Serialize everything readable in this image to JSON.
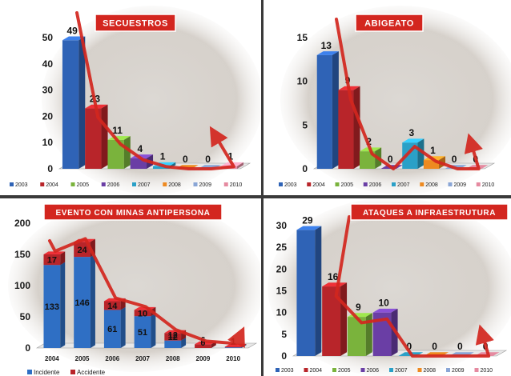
{
  "colors": {
    "title_bg": "#d3261f",
    "trend": "#d3271f",
    "divider": "#3a3a3a",
    "year_colors": {
      "2003": "#2f63b6",
      "2004": "#b8252a",
      "2005": "#7ab33c",
      "2006": "#6a3ea5",
      "2007": "#2aa0c7",
      "2008": "#ee8a21",
      "2009": "#8aa6d6",
      "2010": "#e58aa0"
    },
    "incidente": "#2f6fc4",
    "accidente": "#b8252a"
  },
  "chart_data": [
    {
      "type": "bar",
      "title": "SECUESTROS",
      "categories": [
        "2003",
        "2004",
        "2005",
        "2006",
        "2007",
        "2008",
        "2009",
        "2010"
      ],
      "values": [
        49,
        23,
        11,
        4,
        1,
        0,
        0,
        1
      ],
      "ylim": [
        0,
        50
      ],
      "yticks": [
        0,
        10,
        20,
        30,
        40,
        50
      ],
      "legend": [
        "2003",
        "2004",
        "2005",
        "2006",
        "2007",
        "2008",
        "2009",
        "2010"
      ],
      "legend_position": "bottom",
      "grid": false
    },
    {
      "type": "bar",
      "title": "ABIGEATO",
      "categories": [
        "2003",
        "2004",
        "2005",
        "2006",
        "2007",
        "2008",
        "2009",
        "2010"
      ],
      "values": [
        13,
        9,
        2,
        0,
        3,
        1,
        0,
        0
      ],
      "ylim": [
        0,
        15
      ],
      "yticks": [
        0,
        5,
        10,
        15
      ],
      "legend": [
        "2003",
        "2004",
        "2005",
        "2006",
        "2007",
        "2008",
        "2009",
        "2010"
      ],
      "legend_position": "bottom",
      "grid": false
    },
    {
      "type": "bar",
      "title": "EVENTO CON MINAS ANTIPERSONA",
      "categories": [
        "2004",
        "2005",
        "2006",
        "2007",
        "2008",
        "2009",
        "2010"
      ],
      "series": [
        {
          "name": "Incidente",
          "values": [
            133,
            146,
            61,
            51,
            12,
            0,
            1
          ]
        },
        {
          "name": "Accidente",
          "values": [
            17,
            24,
            14,
            10,
            12,
            6,
            1
          ]
        }
      ],
      "stacked": true,
      "ylim": [
        0,
        200
      ],
      "yticks": [
        0,
        50,
        100,
        150,
        200
      ],
      "legend_position": "bottom",
      "grid": false
    },
    {
      "type": "bar",
      "title": "ATAQUES A INFRAESTRUTURA",
      "categories": [
        "2003",
        "2004",
        "2005",
        "2006",
        "2007",
        "2008",
        "2009",
        "2010"
      ],
      "values": [
        29,
        16,
        9,
        10,
        0,
        0,
        0,
        0
      ],
      "ylim": [
        0,
        30
      ],
      "yticks": [
        0,
        5,
        10,
        15,
        20,
        25,
        30
      ],
      "legend": [
        "2003",
        "2004",
        "2005",
        "2006",
        "2007",
        "2008",
        "2009",
        "2010"
      ],
      "legend_position": "bottom",
      "grid": false
    }
  ]
}
